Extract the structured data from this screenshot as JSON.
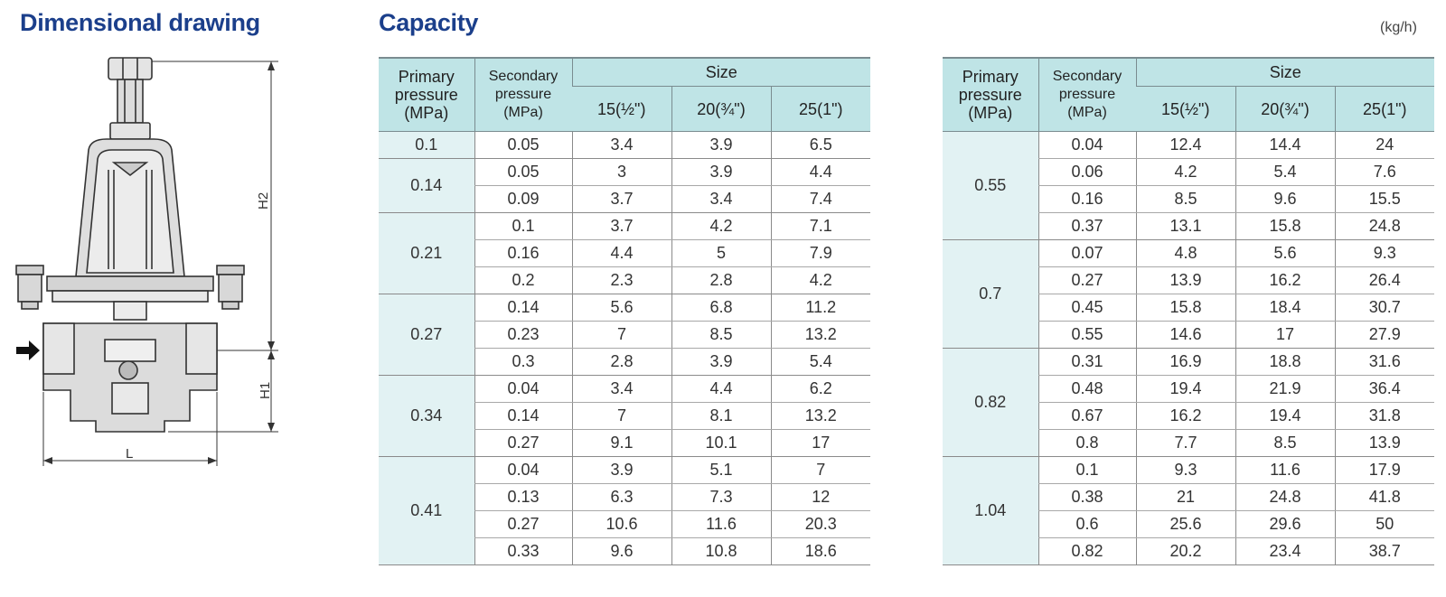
{
  "headings": {
    "dimensional": "Dimensional drawing",
    "capacity": "Capacity",
    "unit": "(kg/h)"
  },
  "drawing": {
    "labels": {
      "h2": "H2",
      "h1": "H1",
      "l": "L"
    },
    "icons": [
      "inlet-arrow-icon"
    ]
  },
  "table_headers": {
    "primary": [
      "Primary",
      "pressure",
      "(MPa)"
    ],
    "secondary": [
      "Secondary",
      "pressure",
      "(MPa)"
    ],
    "size": "Size",
    "sizes": [
      "15(½\")",
      "20(¾\")",
      "25(1\")"
    ]
  },
  "tables": [
    {
      "groups": [
        {
          "primary": "0.1",
          "rows": [
            [
              "0.05",
              "3.4",
              "3.9",
              "6.5"
            ]
          ]
        },
        {
          "primary": "0.14",
          "rows": [
            [
              "0.05",
              "3",
              "3.9",
              "4.4"
            ],
            [
              "0.09",
              "3.7",
              "3.4",
              "7.4"
            ]
          ]
        },
        {
          "primary": "0.21",
          "rows": [
            [
              "0.1",
              "3.7",
              "4.2",
              "7.1"
            ],
            [
              "0.16",
              "4.4",
              "5",
              "7.9"
            ],
            [
              "0.2",
              "2.3",
              "2.8",
              "4.2"
            ]
          ]
        },
        {
          "primary": "0.27",
          "rows": [
            [
              "0.14",
              "5.6",
              "6.8",
              "11.2"
            ],
            [
              "0.23",
              "7",
              "8.5",
              "13.2"
            ],
            [
              "0.3",
              "2.8",
              "3.9",
              "5.4"
            ]
          ]
        },
        {
          "primary": "0.34",
          "rows": [
            [
              "0.04",
              "3.4",
              "4.4",
              "6.2"
            ],
            [
              "0.14",
              "7",
              "8.1",
              "13.2"
            ],
            [
              "0.27",
              "9.1",
              "10.1",
              "17"
            ]
          ]
        },
        {
          "primary": "0.41",
          "rows": [
            [
              "0.04",
              "3.9",
              "5.1",
              "7"
            ],
            [
              "0.13",
              "6.3",
              "7.3",
              "12"
            ],
            [
              "0.27",
              "10.6",
              "11.6",
              "20.3"
            ],
            [
              "0.33",
              "9.6",
              "10.8",
              "18.6"
            ]
          ]
        }
      ]
    },
    {
      "groups": [
        {
          "primary": "0.55",
          "rows": [
            [
              "0.04",
              "12.4",
              "14.4",
              "24"
            ],
            [
              "0.06",
              "4.2",
              "5.4",
              "7.6"
            ],
            [
              "0.16",
              "8.5",
              "9.6",
              "15.5"
            ],
            [
              "0.37",
              "13.1",
              "15.8",
              "24.8"
            ]
          ]
        },
        {
          "primary": "0.7",
          "rows": [
            [
              "0.07",
              "4.8",
              "5.6",
              "9.3"
            ],
            [
              "0.27",
              "13.9",
              "16.2",
              "26.4"
            ],
            [
              "0.45",
              "15.8",
              "18.4",
              "30.7"
            ],
            [
              "0.55",
              "14.6",
              "17",
              "27.9"
            ]
          ]
        },
        {
          "primary": "0.82",
          "rows": [
            [
              "0.31",
              "16.9",
              "18.8",
              "31.6"
            ],
            [
              "0.48",
              "19.4",
              "21.9",
              "36.4"
            ],
            [
              "0.67",
              "16.2",
              "19.4",
              "31.8"
            ],
            [
              "0.8",
              "7.7",
              "8.5",
              "13.9"
            ]
          ]
        },
        {
          "primary": "1.04",
          "rows": [
            [
              "0.1",
              "9.3",
              "11.6",
              "17.9"
            ],
            [
              "0.38",
              "21",
              "24.8",
              "41.8"
            ],
            [
              "0.6",
              "25.6",
              "29.6",
              "50"
            ],
            [
              "0.82",
              "20.2",
              "23.4",
              "38.7"
            ]
          ]
        }
      ]
    }
  ]
}
